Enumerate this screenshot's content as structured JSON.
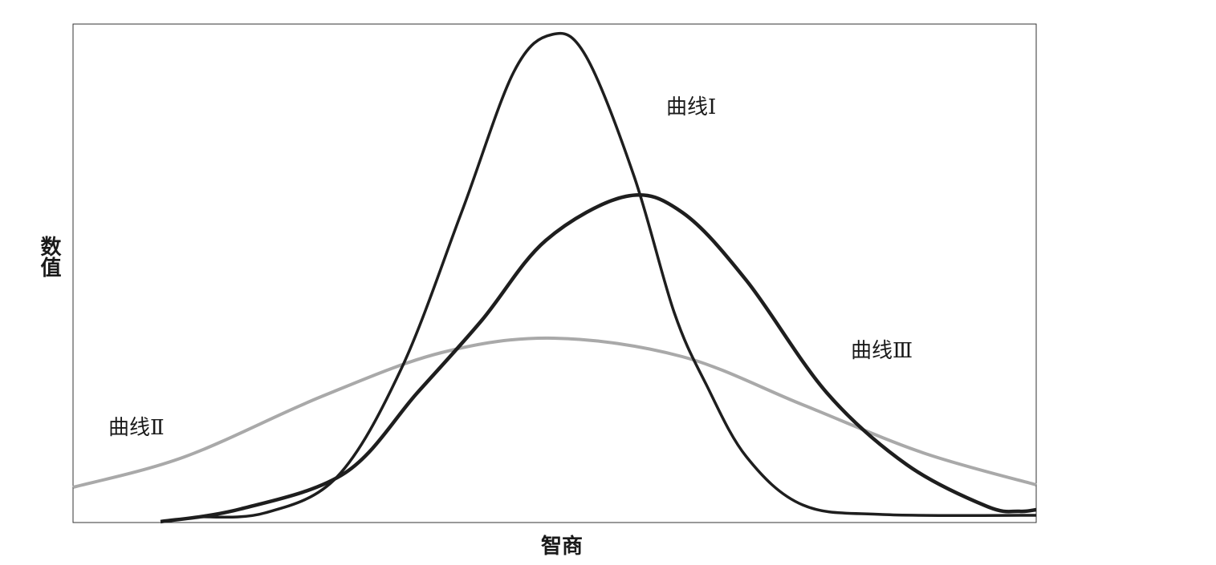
{
  "axes": {
    "y_label": "数值",
    "x_label": "智商"
  },
  "curves": [
    {
      "label": "曲线Ⅰ"
    },
    {
      "label": "曲线Ⅱ"
    },
    {
      "label": "曲线Ⅲ"
    }
  ]
}
